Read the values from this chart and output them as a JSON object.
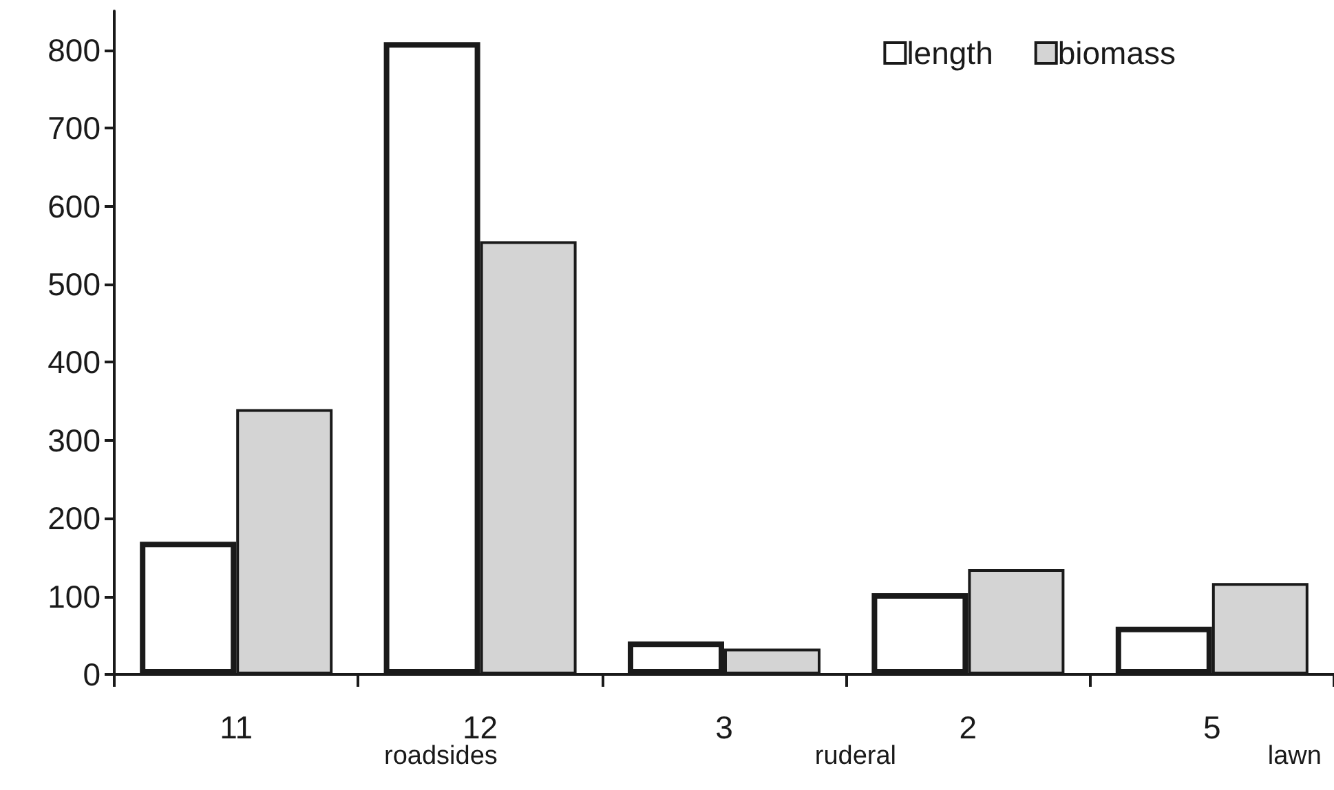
{
  "chart_data": {
    "type": "bar",
    "categories": [
      "11",
      "12",
      "3",
      "2",
      "5"
    ],
    "series": [
      {
        "name": "length",
        "color": "#ffffff",
        "values": [
          170,
          810,
          42,
          104,
          61
        ]
      },
      {
        "name": "biomass",
        "color": "#d4d4d4",
        "values": [
          340,
          555,
          33,
          135,
          117
        ]
      }
    ],
    "annotations": [
      "roadsides",
      "ruderal",
      "lawn"
    ],
    "ylim": [
      0,
      850
    ],
    "yticks": [
      0,
      100,
      200,
      300,
      400,
      500,
      600,
      700,
      800
    ],
    "grid": false,
    "legend": "top right"
  }
}
